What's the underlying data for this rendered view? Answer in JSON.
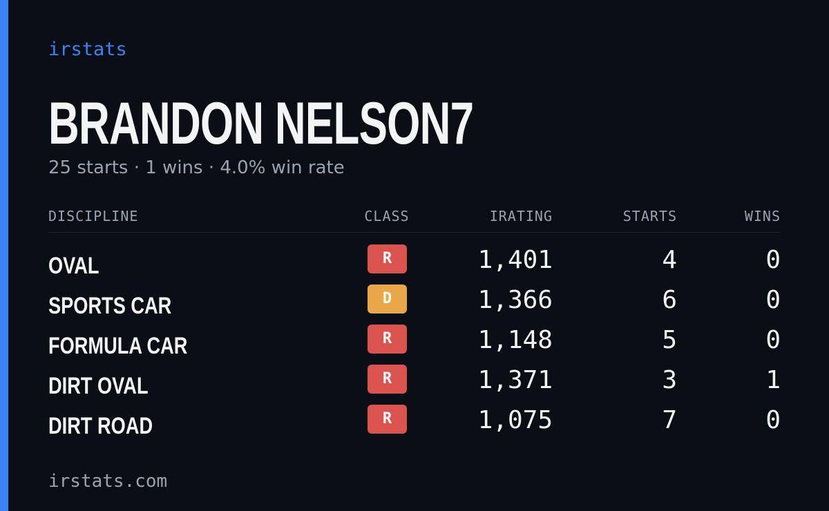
{
  "brand": "irstats",
  "profile": {
    "name": "BRANDON NELSON7",
    "summary": "25 starts · 1 wins · 4.0% win rate"
  },
  "table": {
    "headers": [
      "DISCIPLINE",
      "CLASS",
      "IRATING",
      "STARTS",
      "WINS"
    ],
    "rows": [
      {
        "discipline": "OVAL",
        "class": "R",
        "color": "#d9534f",
        "irating": "1,401",
        "starts": 4,
        "wins": 0
      },
      {
        "discipline": "SPORTS CAR",
        "class": "D",
        "color": "#e8a847",
        "irating": "1,366",
        "starts": 6,
        "wins": 0
      },
      {
        "discipline": "FORMULA CAR",
        "class": "R",
        "color": "#d9534f",
        "irating": "1,148",
        "starts": 5,
        "wins": 0
      },
      {
        "discipline": "DIRT OVAL",
        "class": "R",
        "color": "#d9534f",
        "irating": "1,371",
        "starts": 3,
        "wins": 1
      },
      {
        "discipline": "DIRT ROAD",
        "class": "R",
        "color": "#d9534f",
        "irating": "1,075",
        "starts": 7,
        "wins": 0
      }
    ]
  },
  "footer": "irstats.com"
}
